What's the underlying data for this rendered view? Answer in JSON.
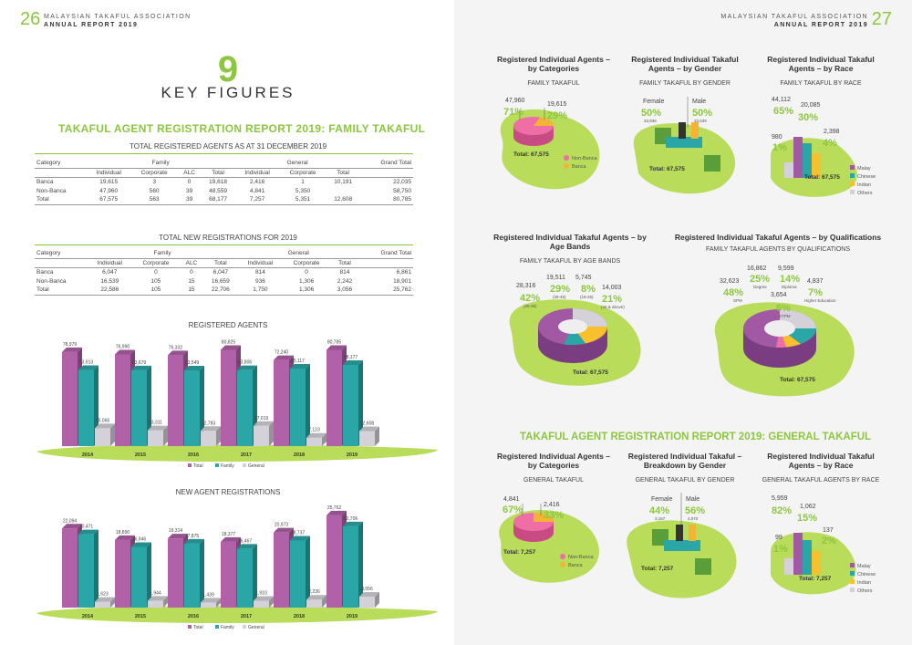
{
  "left": {
    "page_number": "26",
    "header_line1": "MALAYSIAN TAKAFUL ASSOCIATION",
    "header_line2": "ANNUAL REPORT 2019",
    "section_number": "9",
    "section_title": "KEY FIGURES",
    "report_title": "TAKAFUL AGENT REGISTRATION REPORT 2019: FAMILY TAKAFUL",
    "table1": {
      "title": "TOTAL REGISTERED AGENTS AS AT 31 DECEMBER 2019",
      "h_category": "Category",
      "h_family": "Family",
      "h_general": "General",
      "h_grand": "Grand Total",
      "sub": [
        "Individual",
        "Corporate",
        "ALC",
        "Total",
        "Individual",
        "Corporate",
        "Total"
      ],
      "rows": [
        {
          "cat": "Banca",
          "v": [
            "19,615",
            "3",
            "0",
            "19,618",
            "2,416",
            "1",
            "",
            "22,035"
          ],
          "gt": "10,191"
        },
        {
          "cat": "Non-Banca",
          "v": [
            "47,960",
            "560",
            "39",
            "48,559",
            "4,841",
            "5,350",
            "",
            "58,750"
          ],
          "gt": ""
        },
        {
          "cat": "Total",
          "v": [
            "67,575",
            "563",
            "39",
            "68,177",
            "7,257",
            "5,351",
            "12,608",
            "80,785"
          ],
          "gt": ""
        }
      ]
    },
    "table2": {
      "title": "TOTAL NEW REGISTRATIONS FOR 2019",
      "h_category": "Category",
      "h_family": "Family",
      "h_general": "General",
      "h_grand": "Grand Total",
      "sub": [
        "Individual",
        "Corporate",
        "ALC",
        "Total",
        "Individual",
        "Corporate",
        "Total"
      ],
      "rows": [
        {
          "cat": "Banca",
          "v": [
            "6,047",
            "0",
            "0",
            "6,047",
            "814",
            "0",
            "814",
            "6,861"
          ]
        },
        {
          "cat": "Non-Banca",
          "v": [
            "16,539",
            "105",
            "15",
            "16,659",
            "936",
            "1,306",
            "2,242",
            "18,901"
          ]
        },
        {
          "cat": "Total",
          "v": [
            "22,586",
            "105",
            "15",
            "22,706",
            "1,750",
            "1,306",
            "3,056",
            "25,762"
          ]
        }
      ]
    }
  },
  "chart_data": [
    {
      "type": "bar",
      "title": "REGISTERED AGENTS",
      "categories": [
        "2014",
        "2015",
        "2016",
        "2017",
        "2018",
        "2019"
      ],
      "series": [
        {
          "name": "Total",
          "values": [
            78979,
            76990,
            76332,
            80825,
            72240,
            80785
          ],
          "labels": [
            "78,979",
            "76,990",
            "76,332",
            "80,825",
            "72,240",
            "80,785"
          ]
        },
        {
          "name": "Family",
          "values": [
            63913,
            63679,
            63549,
            63806,
            65117,
            68177
          ],
          "labels": [
            "63,913",
            "63,679",
            "63,549",
            "63,806",
            "65,117",
            "68,177"
          ]
        },
        {
          "name": "General",
          "values": [
            15066,
            13311,
            12783,
            17019,
            7123,
            12608
          ],
          "labels": [
            "15,066",
            "13,311",
            "12,783",
            "17,019",
            "7,123",
            "12,608"
          ]
        }
      ],
      "colors": {
        "Total": "#b061a8",
        "Family": "#2aa6a6",
        "General": "#d4d2d8"
      },
      "ylim": [
        0,
        85000
      ]
    },
    {
      "type": "bar",
      "title": "NEW AGENT REGISTRATIONS",
      "categories": [
        "2014",
        "2015",
        "2016",
        "2017",
        "2018",
        "2019"
      ],
      "series": [
        {
          "name": "Total",
          "values": [
            22094,
            18890,
            19314,
            18377,
            20973,
            25762
          ],
          "labels": [
            "22,094",
            "18,890",
            "19,314",
            "18,377",
            "20,973",
            "25,762"
          ]
        },
        {
          "name": "Family",
          "values": [
            20471,
            16946,
            17875,
            16467,
            18737,
            22706
          ],
          "labels": [
            "20,471",
            "16,946",
            "17,875",
            "16,467",
            "18,737",
            "22,706"
          ]
        },
        {
          "name": "General",
          "values": [
            1623,
            1944,
            1439,
            1910,
            2236,
            3056
          ],
          "labels": [
            "1,623",
            "1,944",
            "1,439",
            "1,910",
            "2,236",
            "3,056"
          ]
        }
      ],
      "colors": {
        "Total": "#b061a8",
        "Family": "#2aa6a6",
        "General": "#d4d2d8"
      },
      "ylim": [
        0,
        27000
      ]
    }
  ],
  "right": {
    "page_number": "27",
    "header_line1": "MALAYSIAN TAKAFUL ASSOCIATION",
    "header_line2": "ANNUAL REPORT 2019",
    "general_title": "TAKAFUL AGENT REGISTRATION REPORT 2019: GENERAL TAKAFUL",
    "panels": {
      "fam_cat": {
        "title": "Registered Individual Agents – by Categories",
        "sub": "FAMILY TAKAFUL",
        "total": "Total: 67,575",
        "a_num": "47,960",
        "a_pct": "71%",
        "b_num": "19,615",
        "b_pct": "29%",
        "leg1": "Non-Banca",
        "leg2": "Banca"
      },
      "fam_gender": {
        "title": "Registered Individual Takaful Agents – by Gender",
        "sub": "FAMILY TAKAFUL BY GENDER",
        "total": "Total: 67,575",
        "f_label": "Female",
        "f_pct": "50%",
        "f_num": "33,936",
        "m_label": "Male",
        "m_pct": "50%",
        "m_num": "33,639"
      },
      "fam_race": {
        "title": "Registered Individual Takaful Agents – by Race",
        "sub": "FAMILY TAKAFUL BY RACE",
        "total": "Total: 67,575",
        "malay_num": "44,112",
        "malay_pct": "65%",
        "chinese_num": "20,085",
        "chinese_pct": "30%",
        "indian_num": "2,398",
        "indian_pct": "4%",
        "others_num": "980",
        "others_pct": "1%",
        "legend": [
          "Malay",
          "Chinese",
          "Indian",
          "Others"
        ]
      },
      "fam_age": {
        "title": "Registered Individual Takaful Agents – by Age Bands",
        "sub": "FAMILY TAKAFUL BY AGE BANDS",
        "total": "Total: 67,575",
        "b1_num": "28,316",
        "b1_pct": "42%",
        "b1_band": "(26-35)",
        "b2_num": "19,511",
        "b2_pct": "29%",
        "b2_band": "(36-45)",
        "b3_num": "5,745",
        "b3_pct": "8%",
        "b3_band": "(18-25)",
        "b4_num": "14,003",
        "b4_pct": "21%",
        "b4_band": "(46 & above)"
      },
      "fam_qual": {
        "title": "Registered Individual Takaful Agents – by Qualifications",
        "sub": "FAMILY TAKAFUL AGENTS BY QUALIFICATIONS",
        "total": "Total: 67,575",
        "spm_num": "32,623",
        "spm_pct": "48%",
        "spm": "SPM",
        "deg_num": "16,862",
        "deg_pct": "25%",
        "deg": "Degree",
        "dip_num": "9,599",
        "dip_pct": "14%",
        "dip": "Diploma",
        "he_num": "4,837",
        "he_pct": "7%",
        "he": "Higher Education",
        "stpm_num": "3,654",
        "stpm_pct": "6%",
        "stpm": "STPM"
      },
      "gen_cat": {
        "title": "Registered Individual Agents – by Categories",
        "sub": "GENERAL TAKAFUL",
        "total": "Total: 7,257",
        "a_num": "4,841",
        "a_pct": "67%",
        "b_num": "2,416",
        "b_pct": "33%",
        "leg1": "Non-Banca",
        "leg2": "Banca"
      },
      "gen_gender": {
        "title": "Registered Individual Takaful – Breakdown by Gender",
        "sub": "GENERAL TAKAFUL BY GENDER",
        "total": "Total: 7,257",
        "f_label": "Female",
        "f_pct": "44%",
        "f_num": "3,187",
        "m_label": "Male",
        "m_pct": "56%",
        "m_num": "4,070"
      },
      "gen_race": {
        "title": "Registered Individual Takaful Agents – by Race",
        "sub": "GENERAL TAKAFUL AGENTS BY RACE",
        "total": "Total: 7,257",
        "malay_num": "5,959",
        "malay_pct": "82%",
        "chinese_num": "1,062",
        "chinese_pct": "15%",
        "indian_num": "137",
        "indian_pct": "2%",
        "others_num": "99",
        "others_pct": "1%",
        "legend": [
          "Malay",
          "Chinese",
          "Indian",
          "Others"
        ]
      }
    }
  },
  "colors": {
    "green": "#8dc63f",
    "pink": "#ef6ea6",
    "orange": "#f5b335",
    "purple": "#a259a4",
    "teal": "#2aa6a6",
    "yellow": "#f9c02d",
    "grey": "#d4d2d8",
    "blob": "#b9dc5a"
  }
}
